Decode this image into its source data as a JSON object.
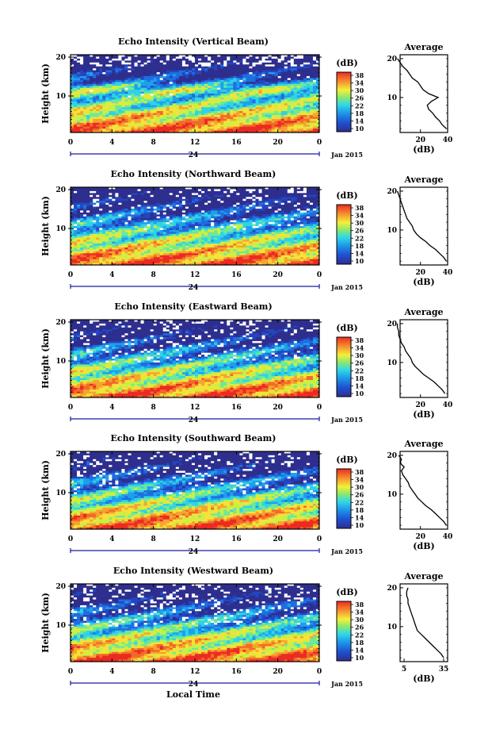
{
  "chart_data": [
    {
      "type": "heatmap",
      "title": "Echo Intensity (Vertical Beam)",
      "ylabel": "Height (km)",
      "x_ticks": [
        "0",
        "4",
        "8",
        "12",
        "16",
        "20",
        "0"
      ],
      "date_label": "24",
      "month_label": "Jan 2015",
      "y_ticks": [
        "20",
        "10"
      ],
      "colorbar": {
        "unit": "(dB)",
        "ticks": [
          "38",
          "34",
          "30",
          "26",
          "22",
          "18",
          "14",
          "10"
        ]
      },
      "profile": {
        "title": "Average",
        "xlabel": "(dB)",
        "x_ticks": [
          "20",
          "40"
        ],
        "y_ticks": [
          "20",
          "10"
        ],
        "heights": [
          2,
          3,
          4,
          5,
          6,
          7,
          8,
          9,
          10,
          11,
          12,
          13,
          14,
          15,
          16,
          17,
          18,
          19,
          20
        ],
        "values": [
          39,
          36,
          34,
          31,
          29,
          26,
          25,
          28,
          33,
          26,
          22,
          20,
          18,
          14,
          12,
          10,
          7,
          5,
          3
        ]
      }
    },
    {
      "type": "heatmap",
      "title": "Echo Intensity (Northward Beam)",
      "ylabel": "Height (km)",
      "x_ticks": [
        "0",
        "4",
        "8",
        "12",
        "16",
        "20",
        "0"
      ],
      "date_label": "24",
      "month_label": "Jan 2015",
      "y_ticks": [
        "20",
        "10"
      ],
      "colorbar": {
        "unit": "(dB)",
        "ticks": [
          "38",
          "34",
          "30",
          "26",
          "22",
          "18",
          "14",
          "10"
        ]
      },
      "profile": {
        "title": "Average",
        "xlabel": "(dB)",
        "x_ticks": [
          "20",
          "40"
        ],
        "y_ticks": [
          "20",
          "10"
        ],
        "heights": [
          2,
          3,
          4,
          5,
          6,
          7,
          8,
          9,
          10,
          11,
          12,
          13,
          14,
          15,
          16,
          17,
          18,
          19,
          20
        ],
        "values": [
          39,
          37,
          34,
          31,
          27,
          24,
          20,
          17,
          15,
          14,
          12,
          10,
          9,
          8,
          7,
          6,
          5,
          4,
          3
        ]
      }
    },
    {
      "type": "heatmap",
      "title": "Echo Intensity (Eastward Beam)",
      "ylabel": "Height (km)",
      "x_ticks": [
        "0",
        "4",
        "8",
        "12",
        "16",
        "20",
        "0"
      ],
      "date_label": "24",
      "month_label": "Jan 2015",
      "y_ticks": [
        "20",
        "10"
      ],
      "colorbar": {
        "unit": "(dB)",
        "ticks": [
          "38",
          "34",
          "30",
          "26",
          "22",
          "18",
          "14",
          "10"
        ]
      },
      "profile": {
        "title": "Average",
        "xlabel": "(dB)",
        "x_ticks": [
          "20",
          "40"
        ],
        "y_ticks": [
          "20",
          "10"
        ],
        "heights": [
          2,
          3,
          4,
          5,
          6,
          7,
          8,
          9,
          10,
          11,
          12,
          13,
          14,
          15,
          16,
          17,
          18,
          19,
          20
        ],
        "values": [
          38,
          36,
          33,
          30,
          26,
          22,
          19,
          16,
          14,
          13,
          11,
          9,
          8,
          6,
          5,
          4,
          4,
          3,
          3
        ]
      }
    },
    {
      "type": "heatmap",
      "title": "Echo Intensity (Southward Beam)",
      "ylabel": "Height (km)",
      "x_ticks": [
        "0",
        "4",
        "8",
        "12",
        "16",
        "20",
        "0"
      ],
      "date_label": "24",
      "month_label": "Jan 2015",
      "y_ticks": [
        "20",
        "10"
      ],
      "colorbar": {
        "unit": "(dB)",
        "ticks": [
          "38",
          "34",
          "30",
          "26",
          "22",
          "18",
          "14",
          "10"
        ]
      },
      "profile": {
        "title": "Average",
        "xlabel": "(dB)",
        "x_ticks": [
          "20",
          "40"
        ],
        "y_ticks": [
          "20",
          "10"
        ],
        "heights": [
          2,
          3,
          4,
          5,
          6,
          7,
          8,
          9,
          10,
          11,
          12,
          13,
          14,
          15,
          16,
          17,
          18,
          19,
          20
        ],
        "values": [
          39,
          37,
          34,
          31,
          28,
          24,
          21,
          18,
          16,
          14,
          12,
          11,
          9,
          7,
          6,
          8,
          5,
          6,
          4
        ]
      }
    },
    {
      "type": "heatmap",
      "title": "Echo Intensity (Westward Beam)",
      "ylabel": "Height (km)",
      "x_ticks": [
        "0",
        "4",
        "8",
        "12",
        "16",
        "20",
        "0"
      ],
      "date_label": "24",
      "month_label": "Jan 2015",
      "y_ticks": [
        "20",
        "10"
      ],
      "colorbar": {
        "unit": "(dB)",
        "ticks": [
          "38",
          "34",
          "30",
          "26",
          "22",
          "18",
          "14",
          "10"
        ]
      },
      "profile": {
        "title": "Average",
        "xlabel": "(dB)",
        "x_ticks": [
          "5",
          "35"
        ],
        "y_ticks": [
          "20",
          "10"
        ],
        "heights": [
          2,
          3,
          4,
          5,
          6,
          7,
          8,
          9,
          10,
          11,
          12,
          13,
          14,
          15,
          16,
          17,
          18,
          19,
          20
        ],
        "values": [
          35,
          33,
          30,
          27,
          24,
          21,
          18,
          15,
          14,
          13,
          12,
          11,
          10,
          9,
          8,
          8,
          7,
          7,
          8
        ]
      }
    }
  ],
  "xlabel": "Local Time"
}
